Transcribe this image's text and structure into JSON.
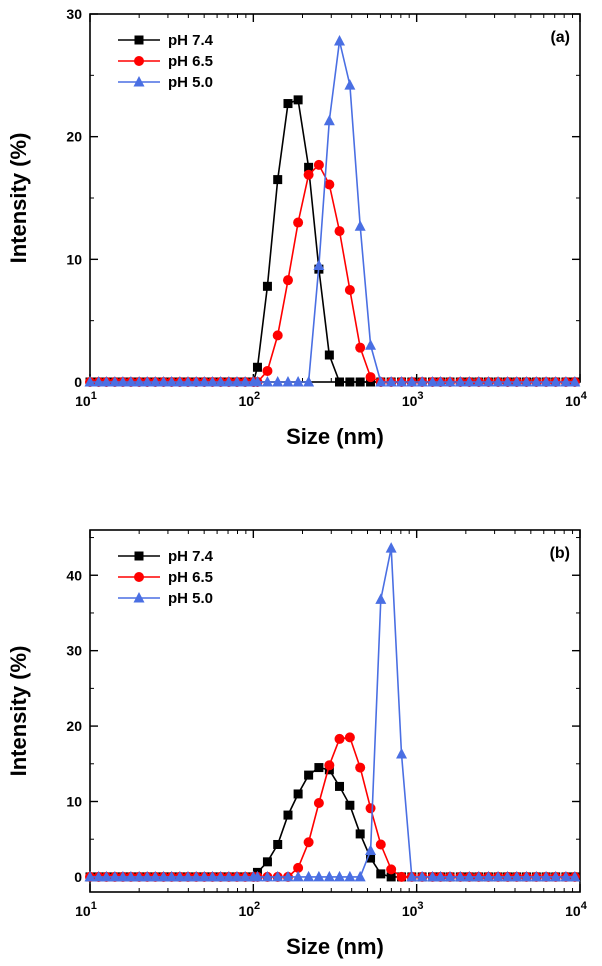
{
  "figure": {
    "background": "#ffffff",
    "marker_style": {
      "pH 7.4": "square",
      "pH 6.5": "circle",
      "pH 5.0": "triangle"
    }
  },
  "chart_data": [
    {
      "type": "line",
      "panel_label": "(a)",
      "xlabel": "Size (nm)",
      "ylabel": "Intensity (%)",
      "xscale": "log",
      "xlim": [
        10,
        10000
      ],
      "ylim": [
        0,
        30
      ],
      "xticks": [
        10,
        100,
        1000,
        10000
      ],
      "xtick_labels": [
        {
          "base": "10",
          "exp": "1"
        },
        {
          "base": "10",
          "exp": "2"
        },
        {
          "base": "10",
          "exp": "3"
        },
        {
          "base": "10",
          "exp": "4"
        }
      ],
      "yticks": [
        0,
        10,
        20,
        30
      ],
      "ytick_labels": [
        "0",
        "10",
        "20",
        "30"
      ],
      "grid": false,
      "legend_position": "top-left",
      "series": [
        {
          "name": "pH 7.4",
          "color": "#000000",
          "marker": "square",
          "x": [
            10,
            11.3,
            12.6,
            14.2,
            15.9,
            17.8,
            20,
            22.4,
            25.1,
            28.2,
            31.6,
            35.5,
            39.8,
            44.7,
            50.1,
            56.2,
            63.1,
            70.8,
            79.4,
            89.1,
            100,
            106,
            122,
            141,
            163,
            188,
            218,
            252,
            292,
            337,
            390,
            451,
            522,
            603,
            698,
            808,
            934,
            1080,
            1250,
            1400,
            1600,
            1850,
            2100,
            2400,
            2750,
            3150,
            3600,
            4100,
            4700,
            5400,
            6200,
            7100,
            8200,
            9300
          ],
          "y": [
            0,
            0,
            0,
            0,
            0,
            0,
            0,
            0,
            0,
            0,
            0,
            0,
            0,
            0,
            0,
            0,
            0,
            0,
            0,
            0,
            0,
            1.2,
            7.8,
            16.5,
            22.7,
            23.0,
            17.5,
            9.2,
            2.2,
            0,
            0,
            0,
            0,
            0,
            0,
            0,
            0,
            0,
            0,
            0,
            0,
            0,
            0,
            0,
            0,
            0,
            0,
            0,
            0,
            0,
            0,
            0,
            0,
            0
          ]
        },
        {
          "name": "pH 6.5",
          "color": "#ff0000",
          "marker": "circle",
          "x": [
            10,
            11.3,
            12.6,
            14.2,
            15.9,
            17.8,
            20,
            22.4,
            25.1,
            28.2,
            31.6,
            35.5,
            39.8,
            44.7,
            50.1,
            56.2,
            63.1,
            70.8,
            79.4,
            89.1,
            100,
            106,
            122,
            141,
            163,
            188,
            218,
            252,
            292,
            337,
            390,
            451,
            522,
            603,
            698,
            808,
            934,
            1080,
            1250,
            1400,
            1600,
            1850,
            2100,
            2400,
            2750,
            3150,
            3600,
            4100,
            4700,
            5400,
            6200,
            7100,
            8200,
            9300
          ],
          "y": [
            0,
            0,
            0,
            0,
            0,
            0,
            0,
            0,
            0,
            0,
            0,
            0,
            0,
            0,
            0,
            0,
            0,
            0,
            0,
            0,
            0,
            0,
            0.9,
            3.8,
            8.3,
            13.0,
            16.9,
            17.7,
            16.1,
            12.3,
            7.5,
            2.8,
            0.4,
            0,
            0,
            0,
            0,
            0,
            0,
            0,
            0,
            0,
            0,
            0,
            0,
            0,
            0,
            0,
            0,
            0,
            0,
            0,
            0,
            0
          ]
        },
        {
          "name": "pH 5.0",
          "color": "#4a6fe3",
          "marker": "triangle",
          "x": [
            10,
            11.3,
            12.6,
            14.2,
            15.9,
            17.8,
            20,
            22.4,
            25.1,
            28.2,
            31.6,
            35.5,
            39.8,
            44.7,
            50.1,
            56.2,
            63.1,
            70.8,
            79.4,
            89.1,
            100,
            106,
            122,
            141,
            163,
            188,
            218,
            252,
            292,
            337,
            390,
            451,
            522,
            603,
            698,
            808,
            934,
            1080,
            1250,
            1400,
            1600,
            1850,
            2100,
            2400,
            2750,
            3150,
            3600,
            4100,
            4700,
            5400,
            6200,
            7100,
            8200,
            9300
          ],
          "y": [
            0,
            0,
            0,
            0,
            0,
            0,
            0,
            0,
            0,
            0,
            0,
            0,
            0,
            0,
            0,
            0,
            0,
            0,
            0,
            0,
            0,
            0,
            0,
            0,
            0,
            0,
            0,
            9.5,
            21.3,
            27.8,
            24.2,
            12.7,
            3.0,
            0,
            0,
            0,
            0,
            0,
            0,
            0,
            0,
            0,
            0,
            0,
            0,
            0,
            0,
            0,
            0,
            0,
            0,
            0,
            0,
            0
          ]
        }
      ]
    },
    {
      "type": "line",
      "panel_label": "(b)",
      "xlabel": "Size (nm)",
      "ylabel": "Intensity (%)",
      "xscale": "log",
      "xlim": [
        10,
        10000
      ],
      "ylim": [
        -2,
        46
      ],
      "xticks": [
        10,
        100,
        1000,
        10000
      ],
      "xtick_labels": [
        {
          "base": "10",
          "exp": "1"
        },
        {
          "base": "10",
          "exp": "2"
        },
        {
          "base": "10",
          "exp": "3"
        },
        {
          "base": "10",
          "exp": "4"
        }
      ],
      "yticks": [
        0,
        10,
        20,
        30,
        40
      ],
      "ytick_labels": [
        "0",
        "10",
        "20",
        "30",
        "40"
      ],
      "grid": false,
      "legend_position": "top-left",
      "series": [
        {
          "name": "pH 7.4",
          "color": "#000000",
          "marker": "square",
          "x": [
            10,
            11.3,
            12.6,
            14.2,
            15.9,
            17.8,
            20,
            22.4,
            25.1,
            28.2,
            31.6,
            35.5,
            39.8,
            44.7,
            50.1,
            56.2,
            63.1,
            70.8,
            79.4,
            89.1,
            100,
            106,
            122,
            141,
            163,
            188,
            218,
            252,
            292,
            337,
            390,
            451,
            522,
            603,
            698,
            808,
            934,
            1080,
            1250,
            1400,
            1600,
            1850,
            2100,
            2400,
            2750,
            3150,
            3600,
            4100,
            4700,
            5400,
            6200,
            7100,
            8200,
            9300
          ],
          "y": [
            0,
            0,
            0,
            0,
            0,
            0,
            0,
            0,
            0,
            0,
            0,
            0,
            0,
            0,
            0,
            0,
            0,
            0,
            0,
            0,
            0,
            0.6,
            2.0,
            4.3,
            8.2,
            11.0,
            13.5,
            14.5,
            14.2,
            12.0,
            9.5,
            5.7,
            2.5,
            0.4,
            0,
            0,
            0,
            0,
            0,
            0,
            0,
            0,
            0,
            0,
            0,
            0,
            0,
            0,
            0,
            0,
            0,
            0,
            0,
            0
          ]
        },
        {
          "name": "pH 6.5",
          "color": "#ff0000",
          "marker": "circle",
          "x": [
            10,
            11.3,
            12.6,
            14.2,
            15.9,
            17.8,
            20,
            22.4,
            25.1,
            28.2,
            31.6,
            35.5,
            39.8,
            44.7,
            50.1,
            56.2,
            63.1,
            70.8,
            79.4,
            89.1,
            100,
            106,
            122,
            141,
            163,
            188,
            218,
            252,
            292,
            337,
            390,
            451,
            522,
            603,
            698,
            808,
            934,
            1080,
            1250,
            1400,
            1600,
            1850,
            2100,
            2400,
            2750,
            3150,
            3600,
            4100,
            4700,
            5400,
            6200,
            7100,
            8200,
            9300
          ],
          "y": [
            0,
            0,
            0,
            0,
            0,
            0,
            0,
            0,
            0,
            0,
            0,
            0,
            0,
            0,
            0,
            0,
            0,
            0,
            0,
            0,
            0,
            0,
            0,
            0,
            0,
            1.2,
            4.6,
            9.8,
            14.8,
            18.3,
            18.5,
            14.5,
            9.1,
            4.3,
            1.0,
            0,
            0,
            0,
            0,
            0,
            0,
            0,
            0,
            0,
            0,
            0,
            0,
            0,
            0,
            0,
            0,
            0,
            0,
            0
          ]
        },
        {
          "name": "pH 5.0",
          "color": "#4a6fe3",
          "marker": "triangle",
          "x": [
            10,
            11.3,
            12.6,
            14.2,
            15.9,
            17.8,
            20,
            22.4,
            25.1,
            28.2,
            31.6,
            35.5,
            39.8,
            44.7,
            50.1,
            56.2,
            63.1,
            70.8,
            79.4,
            89.1,
            100,
            106,
            122,
            141,
            163,
            188,
            218,
            252,
            292,
            337,
            390,
            451,
            522,
            603,
            698,
            808,
            934,
            1080,
            1250,
            1400,
            1600,
            1850,
            2100,
            2400,
            2750,
            3150,
            3600,
            4100,
            4700,
            5400,
            6200,
            7100,
            8200,
            9300
          ],
          "y": [
            0,
            0,
            0,
            0,
            0,
            0,
            0,
            0,
            0,
            0,
            0,
            0,
            0,
            0,
            0,
            0,
            0,
            0,
            0,
            0,
            0,
            0,
            0,
            0,
            0,
            0,
            0,
            0,
            0,
            0,
            0,
            0,
            3.5,
            36.8,
            43.6,
            16.3,
            0,
            0,
            0,
            0,
            0,
            0,
            0,
            0,
            0,
            0,
            0,
            0,
            0,
            0,
            0,
            0,
            0,
            0
          ]
        }
      ]
    }
  ]
}
